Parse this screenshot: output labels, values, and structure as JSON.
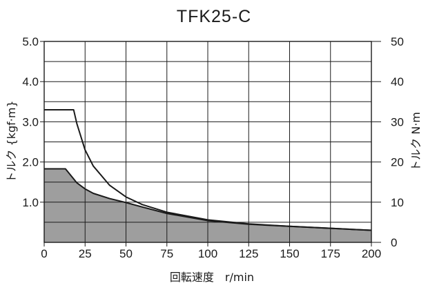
{
  "chart_data": {
    "type": "area",
    "title": "TFK25-C",
    "xlabel": "回転速度　r/min",
    "ylabel_left": "トルク {kgf·m}",
    "ylabel_right": "トルク N·m",
    "xlim": [
      0,
      200
    ],
    "ylim_left": [
      0,
      5.0
    ],
    "ylim_right": [
      0,
      50
    ],
    "x_ticks": [
      "0",
      "25",
      "50",
      "75",
      "100",
      "125",
      "150",
      "175",
      "200"
    ],
    "y_ticks_left": [
      "1.0",
      "2.0",
      "3.0",
      "4.0",
      "5.0"
    ],
    "y_ticks_right": [
      "0",
      "10",
      "20",
      "30",
      "40",
      "50"
    ],
    "grid": true,
    "colors": {
      "fill": "#9e9e9e",
      "line": "#1a1a1a",
      "grid": "#1a1a1a"
    },
    "series": [
      {
        "style": "line",
        "x": [
          0,
          18,
          20,
          25,
          30,
          40,
          50,
          60,
          75,
          100,
          125,
          150,
          175,
          200
        ],
        "y": [
          3.3,
          3.3,
          2.95,
          2.3,
          1.9,
          1.42,
          1.13,
          0.94,
          0.75,
          0.56,
          0.46,
          0.4,
          0.35,
          0.3
        ]
      },
      {
        "style": "filled",
        "x": [
          0,
          13,
          20,
          25,
          30,
          40,
          50,
          60,
          75,
          100,
          125,
          150,
          175,
          200
        ],
        "y": [
          1.83,
          1.83,
          1.48,
          1.33,
          1.22,
          1.09,
          0.99,
          0.88,
          0.72,
          0.54,
          0.45,
          0.4,
          0.35,
          0.3
        ]
      }
    ]
  }
}
